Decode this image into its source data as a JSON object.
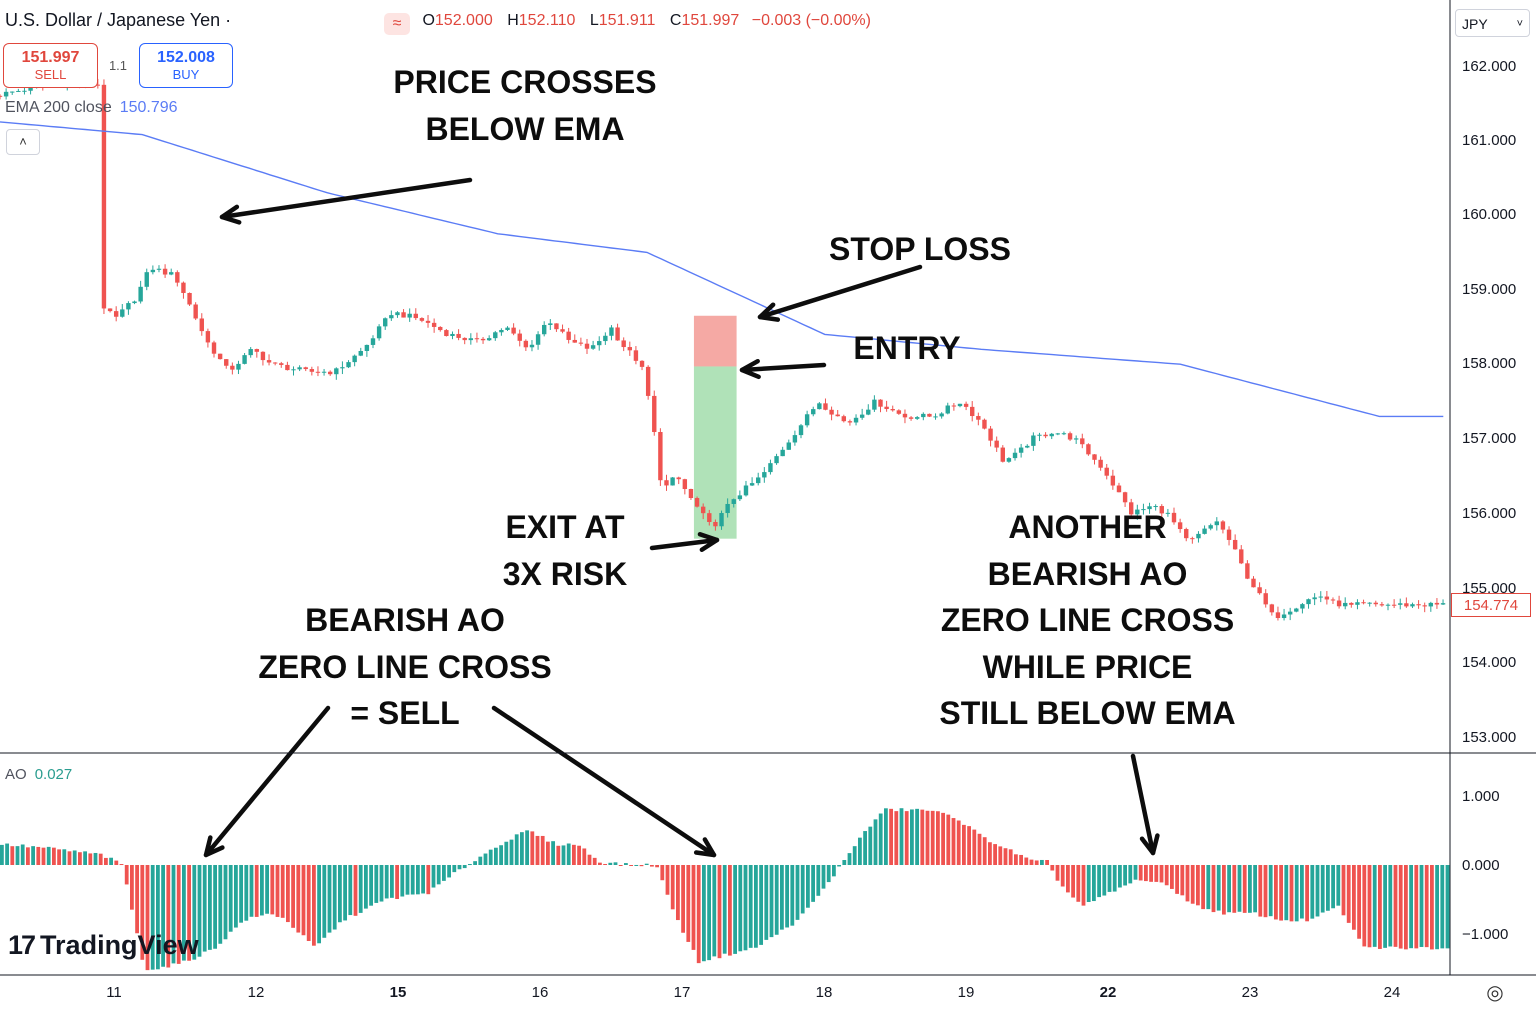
{
  "header": {
    "symbol_title": "U.S. Dollar / Japanese Yen ·",
    "ohlc_icon": "≈",
    "o_label": "O",
    "o_value": "152.000",
    "h_label": "H",
    "h_value": "152.110",
    "l_label": "L",
    "l_value": "151.911",
    "c_label": "C",
    "c_value": "151.997",
    "change": "−0.003 (−0.00%)"
  },
  "trade": {
    "sell_price": "151.997",
    "sell_label": "SELL",
    "spread": "1.1",
    "buy_price": "152.008",
    "buy_label": "BUY"
  },
  "indicators": {
    "ema_label": "EMA 200 close",
    "ema_value": "150.796",
    "collapse_icon": "˄",
    "ao_label": "AO",
    "ao_value": "0.027"
  },
  "currency_select": {
    "value": "JPY",
    "chevron": "˅"
  },
  "price_axis": [
    "162.000",
    "161.000",
    "160.000",
    "159.000",
    "158.000",
    "157.000",
    "156.000",
    "155.000",
    "154.000",
    "153.000"
  ],
  "current_price": "154.774",
  "ao_axis": [
    "1.000",
    "0.000",
    "−1.000"
  ],
  "time_axis": [
    {
      "label": "11",
      "bold": false
    },
    {
      "label": "12",
      "bold": false
    },
    {
      "label": "15",
      "bold": true
    },
    {
      "label": "16",
      "bold": false
    },
    {
      "label": "17",
      "bold": false
    },
    {
      "label": "18",
      "bold": false
    },
    {
      "label": "19",
      "bold": false
    },
    {
      "label": "22",
      "bold": true
    },
    {
      "label": "23",
      "bold": false
    },
    {
      "label": "24",
      "bold": false
    }
  ],
  "annotations": {
    "price_cross_1": "PRICE CROSSES",
    "price_cross_2": "BELOW EMA",
    "stop_loss": "STOP LOSS",
    "entry": "ENTRY",
    "exit_1": "EXIT AT",
    "exit_2": "3X RISK",
    "sell_1": "BEARISH AO",
    "sell_2": "ZERO LINE CROSS",
    "sell_3": "= SELL",
    "another_1": "ANOTHER",
    "another_2": "BEARISH AO",
    "another_3": "ZERO LINE CROSS",
    "another_4": "WHILE PRICE",
    "another_5": "STILL BELOW EMA"
  },
  "logo": {
    "mark": "17",
    "text": "TradingView"
  },
  "settings_icon": "◎",
  "colors": {
    "bull": "#26a69a",
    "bear": "#ef5350",
    "ema": "#5b7cf5",
    "stop_zone": "#f4a09a",
    "target_zone": "#a7dfb0"
  },
  "chart_data": {
    "type": "candlestick",
    "price_ylim": [
      152.8,
      162.5
    ],
    "ema_200": {
      "x": [
        0.0,
        1.0,
        2.3,
        3.5,
        4.55,
        5.8,
        6.9,
        8.3,
        9.7
      ],
      "y": [
        161.25,
        161.08,
        160.3,
        159.75,
        159.5,
        158.4,
        158.2,
        158.0,
        157.3
      ]
    },
    "price_path": {
      "x": [
        0.0,
        0.5,
        0.75,
        0.76,
        0.85,
        1.0,
        1.1,
        1.25,
        1.3,
        1.5,
        1.65,
        1.82,
        1.95,
        2.2,
        2.4,
        2.6,
        2.8,
        3.0,
        3.2,
        3.4,
        3.5,
        3.6,
        3.75,
        3.9,
        4.05,
        4.2,
        4.35,
        4.4,
        4.55,
        4.62,
        4.7,
        4.8,
        4.9,
        5.05,
        5.2,
        5.4,
        5.6,
        5.8,
        6.0,
        6.2,
        6.4,
        6.6,
        6.8,
        6.95,
        7.1,
        7.2,
        7.3,
        7.45,
        7.6,
        7.8,
        8.0,
        8.15,
        8.25,
        8.4,
        8.6,
        8.7,
        8.8,
        9.0,
        9.1,
        9.25,
        9.35,
        9.4,
        9.5,
        9.55,
        9.6
      ],
      "y": [
        161.6,
        161.8,
        161.75,
        158.8,
        158.6,
        158.9,
        159.3,
        159.2,
        159.1,
        158.3,
        157.9,
        158.2,
        158.0,
        157.9,
        157.9,
        158.2,
        158.7,
        158.6,
        158.4,
        158.3,
        158.4,
        158.5,
        158.2,
        158.6,
        158.3,
        158.2,
        158.5,
        158.3,
        158.0,
        157.4,
        156.3,
        156.5,
        156.2,
        155.8,
        156.2,
        156.5,
        157.0,
        157.5,
        157.2,
        157.5,
        157.3,
        157.3,
        157.5,
        157.2,
        156.7,
        156.8,
        157.0,
        157.1,
        157.0,
        156.6,
        156.0,
        156.1,
        156.0,
        155.6,
        155.9,
        155.6,
        155.2,
        154.6,
        154.7,
        154.85,
        154.9,
        154.8,
        154.774,
        154.75,
        154.774
      ]
    },
    "ao_ylim": [
      -1.6,
      1.6
    ],
    "ao": {
      "x": [
        0.0,
        0.3,
        0.7,
        0.85,
        1.0,
        1.1,
        1.3,
        1.5,
        1.7,
        1.9,
        2.0,
        2.2,
        2.4,
        2.7,
        3.0,
        3.2,
        3.5,
        3.7,
        3.9,
        4.05,
        4.2,
        4.4,
        4.6,
        4.75,
        4.9,
        5.1,
        5.3,
        5.6,
        5.8,
        6.0,
        6.2,
        6.5,
        6.7,
        6.9,
        7.1,
        7.25,
        7.35,
        7.45,
        7.6,
        7.8,
        8.0,
        8.2,
        8.4,
        8.6,
        8.8,
        9.0,
        9.2,
        9.4,
        9.55,
        9.6
      ],
      "y": [
        0.3,
        0.25,
        0.15,
        0.0,
        -1.5,
        -1.5,
        -1.4,
        -1.2,
        -0.8,
        -0.7,
        -0.8,
        -1.2,
        -0.8,
        -0.5,
        -0.4,
        -0.1,
        0.3,
        0.5,
        0.3,
        0.3,
        0.05,
        0.0,
        0.0,
        -0.8,
        -1.4,
        -1.3,
        -1.2,
        -0.8,
        -0.3,
        0.3,
        0.8,
        0.8,
        0.7,
        0.4,
        0.2,
        0.05,
        0.05,
        -0.3,
        -0.6,
        -0.4,
        -0.2,
        -0.3,
        -0.6,
        -0.7,
        -0.7,
        -0.8,
        -0.8,
        -0.6,
        -1.1,
        -1.2
      ]
    },
    "trade_zone": {
      "stop": 158.65,
      "entry": 157.97,
      "target": 155.66
    },
    "time_labels": [
      "11",
      "12",
      "15",
      "16",
      "17",
      "18",
      "19",
      "22",
      "23",
      "24"
    ]
  }
}
